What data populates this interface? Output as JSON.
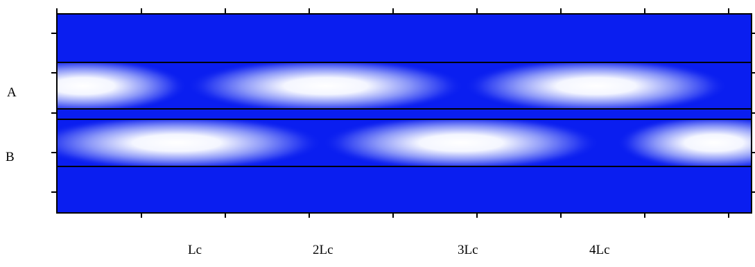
{
  "waveguides": [
    {
      "label": "A",
      "color": "#0a1ef0",
      "highlight": "#ffffff"
    },
    {
      "label": "B",
      "color": "#0a1ef0",
      "highlight": "#ffffff"
    }
  ],
  "x_tick_labels": [
    "Lc",
    "2Lc",
    "3Lc",
    "4Lc"
  ],
  "background_color": "#0a1ef0"
}
